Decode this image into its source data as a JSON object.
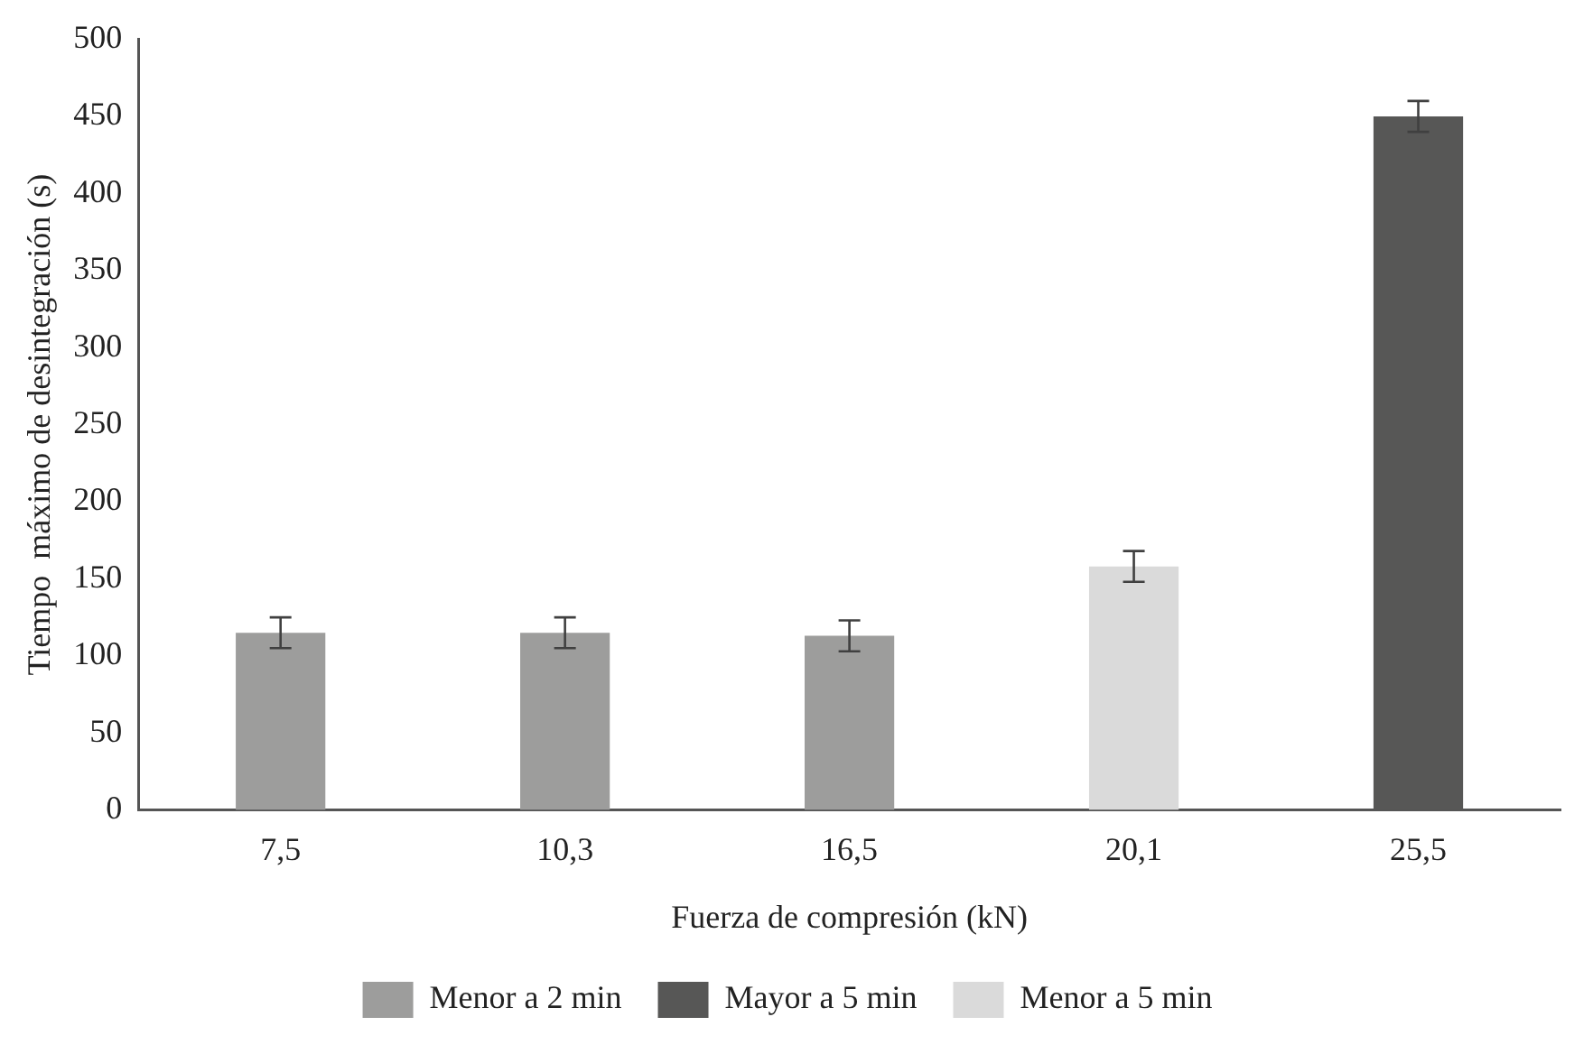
{
  "chart_data": {
    "type": "bar",
    "xlabel": "Fuerza de compresión (kN)",
    "ylabel": "Tiempo  máximo de desintegración (s)",
    "categories": [
      "7,5",
      "10,3",
      "16,5",
      "20,1",
      "25,5"
    ],
    "series": [
      {
        "name": "Menor a 2 min",
        "color": "#9d9d9c",
        "values": [
          115,
          115,
          113,
          null,
          null
        ],
        "errors": [
          10,
          10,
          10,
          null,
          null
        ]
      },
      {
        "name": "Mayor a 5 min",
        "color": "#575756",
        "values": [
          null,
          null,
          null,
          null,
          450
        ],
        "errors": [
          null,
          null,
          null,
          null,
          10
        ]
      },
      {
        "name": "Menor a 5 min",
        "color": "#dadada",
        "values": [
          null,
          null,
          null,
          158,
          null
        ],
        "errors": [
          null,
          null,
          null,
          10,
          null
        ]
      }
    ],
    "ylim": [
      0,
      500
    ],
    "yticks": [
      0,
      50,
      100,
      150,
      200,
      250,
      300,
      350,
      400,
      450,
      500
    ],
    "grid": false,
    "legend": "bottom"
  }
}
